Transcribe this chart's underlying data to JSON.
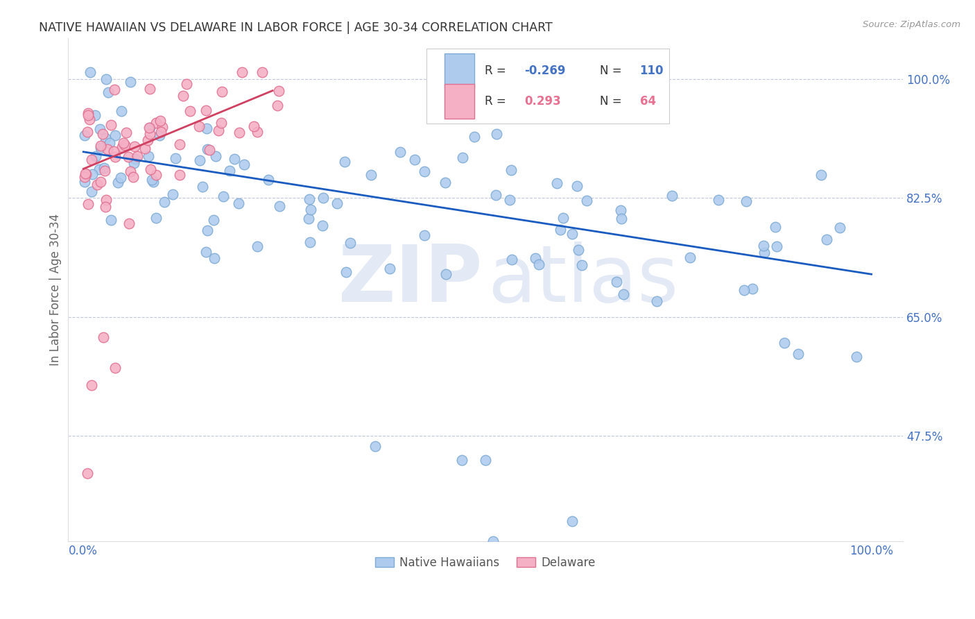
{
  "title": "NATIVE HAWAIIAN VS DELAWARE IN LABOR FORCE | AGE 30-34 CORRELATION CHART",
  "source": "Source: ZipAtlas.com",
  "ylabel": "In Labor Force | Age 30-34",
  "yticks": [
    0.475,
    0.65,
    0.825,
    1.0
  ],
  "ytick_labels": [
    "47.5%",
    "65.0%",
    "82.5%",
    "100.0%"
  ],
  "xlim": [
    -0.02,
    1.04
  ],
  "ylim": [
    0.32,
    1.06
  ],
  "watermark_zip": "ZIP",
  "watermark_atlas": "atlas",
  "nh_scatter_color": "#aecbee",
  "nh_scatter_edge": "#7eaad4",
  "de_scatter_color": "#f5b0c5",
  "de_scatter_edge": "#e07090",
  "nh_trend_color": "#1a5bbf",
  "de_trend_color": "#d04060",
  "axis_label_color": "#4472c4",
  "ylabel_color": "#666666",
  "title_color": "#333333",
  "source_color": "#999999",
  "grid_color": "#c0c8dc",
  "legend_r1": "R = ",
  "legend_v1": "-0.269",
  "legend_n1": "N = ",
  "legend_nv1": "110",
  "legend_r2": "R =  ",
  "legend_v2": "0.293",
  "legend_n2": "N = ",
  "legend_nv2": "64",
  "legend_color_blue": "#4472c4",
  "legend_color_pink": "#e87090",
  "bottom_label1": "Native Hawaiians",
  "bottom_label2": "Delaware",
  "nh_trend_x": [
    0.0,
    1.0
  ],
  "nh_trend_y": [
    0.893,
    0.713
  ],
  "de_trend_x": [
    0.0,
    0.24
  ],
  "de_trend_y": [
    0.868,
    0.983
  ]
}
